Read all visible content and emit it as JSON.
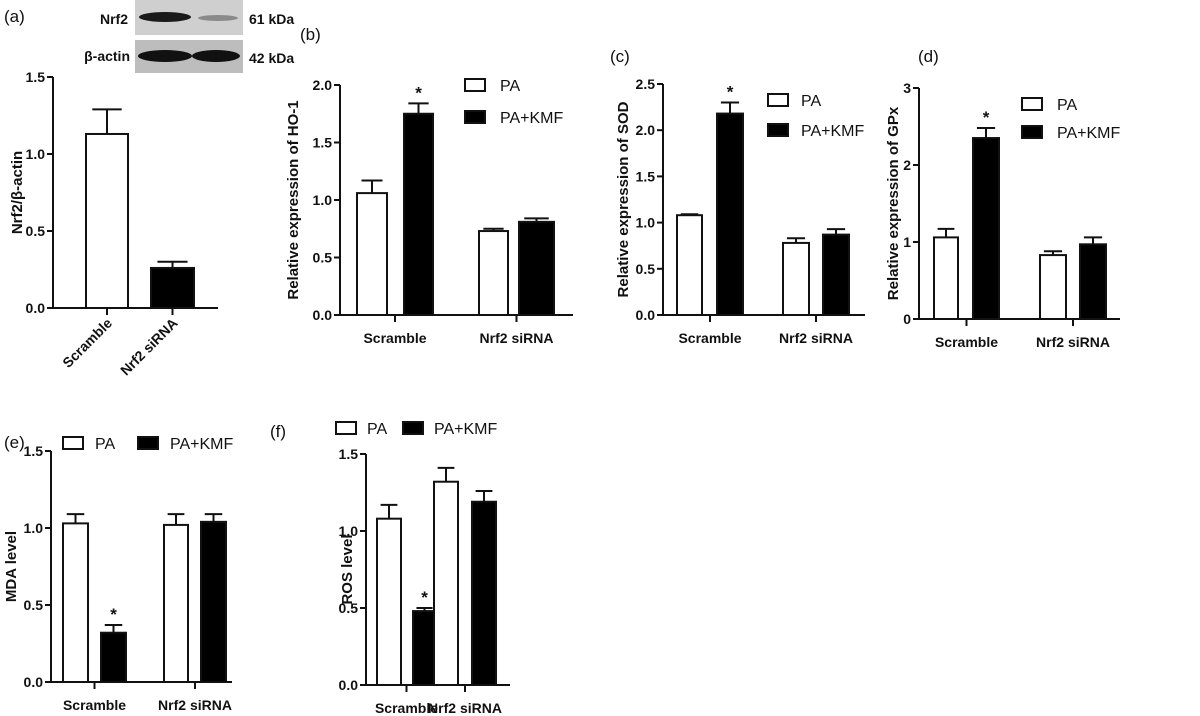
{
  "colors": {
    "PA": "#ffffff",
    "PA+KMF": "#000000",
    "axis": "#111111"
  },
  "western_blot": {
    "rows": [
      {
        "protein": "Nrf2",
        "size": "61 kDa"
      },
      {
        "protein": "β-actin",
        "size": "42 kDa"
      }
    ]
  },
  "chart_data": [
    {
      "panel": "(a)",
      "type": "bar",
      "categories": [
        "Scramble",
        "Nrf2 siRNA"
      ],
      "series": [
        {
          "values": [
            1.13,
            0.26
          ],
          "errors": [
            0.16,
            0.04
          ],
          "fills": [
            "#ffffff",
            "#000000"
          ]
        }
      ],
      "ylabel": "Nrf2/β-actin",
      "ylim": [
        0,
        1.5
      ],
      "yticks": [
        "0.0",
        "0.5",
        "1.0",
        "1.5"
      ],
      "tick_rotation": "45deg",
      "legend": null
    },
    {
      "panel": "(b)",
      "type": "bar",
      "categories": [
        "Scramble",
        "Nrf2 siRNA"
      ],
      "series": [
        {
          "name": "PA",
          "values": [
            1.06,
            0.73
          ],
          "errors": [
            0.11,
            0.02
          ]
        },
        {
          "name": "PA+KMF",
          "values": [
            1.75,
            0.81
          ],
          "errors": [
            0.09,
            0.03
          ]
        }
      ],
      "annotations": [
        {
          "category": "Scramble",
          "series": "PA+KMF",
          "text": "*"
        }
      ],
      "ylabel": "Relative expression of HO-1",
      "ylim": [
        0,
        2.0
      ],
      "yticks": [
        "0.0",
        "0.5",
        "1.0",
        "1.5",
        "2.0"
      ],
      "legend": "top-right"
    },
    {
      "panel": "(c)",
      "type": "bar",
      "categories": [
        "Scramble",
        "Nrf2 siRNA"
      ],
      "series": [
        {
          "name": "PA",
          "values": [
            1.08,
            0.78
          ],
          "errors": [
            0.01,
            0.05
          ]
        },
        {
          "name": "PA+KMF",
          "values": [
            2.18,
            0.87
          ],
          "errors": [
            0.12,
            0.06
          ]
        }
      ],
      "annotations": [
        {
          "category": "Scramble",
          "series": "PA+KMF",
          "text": "*"
        }
      ],
      "ylabel": "Relative expression of SOD",
      "ylim": [
        0,
        2.5
      ],
      "yticks": [
        "0.0",
        "0.5",
        "1.0",
        "1.5",
        "2.0",
        "2.5"
      ],
      "legend": "top-right"
    },
    {
      "panel": "(d)",
      "type": "bar",
      "categories": [
        "Scramble",
        "Nrf2 siRNA"
      ],
      "series": [
        {
          "name": "PA",
          "values": [
            1.06,
            0.83
          ],
          "errors": [
            0.11,
            0.05
          ]
        },
        {
          "name": "PA+KMF",
          "values": [
            2.35,
            0.97
          ],
          "errors": [
            0.13,
            0.09
          ]
        }
      ],
      "annotations": [
        {
          "category": "Scramble",
          "series": "PA+KMF",
          "text": "*"
        }
      ],
      "ylabel": "Relative expression of  GPx",
      "ylim": [
        0,
        3
      ],
      "yticks": [
        "0",
        "1",
        "2",
        "3"
      ],
      "legend": "top-right"
    },
    {
      "panel": "(e)",
      "type": "bar",
      "categories": [
        "Scramble",
        "Nrf2 siRNA"
      ],
      "series": [
        {
          "name": "PA",
          "values": [
            1.03,
            1.02
          ],
          "errors": [
            0.06,
            0.07
          ]
        },
        {
          "name": "PA+KMF",
          "values": [
            0.32,
            1.04
          ],
          "errors": [
            0.05,
            0.05
          ]
        }
      ],
      "annotations": [
        {
          "category": "Scramble",
          "series": "PA+KMF",
          "text": "*"
        }
      ],
      "ylabel": "MDA level",
      "ylim": [
        0,
        1.5
      ],
      "yticks": [
        "0.0",
        "0.5",
        "1.0",
        "1.5"
      ],
      "legend": "top"
    },
    {
      "panel": "(f)",
      "type": "bar",
      "categories": [
        "Scramble",
        "Nrf2 siRNA"
      ],
      "series": [
        {
          "name": "PA",
          "values": [
            1.08,
            1.32
          ],
          "errors": [
            0.09,
            0.09
          ]
        },
        {
          "name": "PA+KMF",
          "values": [
            0.48,
            1.19
          ],
          "errors": [
            0.02,
            0.07
          ]
        }
      ],
      "annotations": [
        {
          "category": "Scramble",
          "series": "PA+KMF",
          "text": "*"
        }
      ],
      "ylabel": "ROS level",
      "ylim": [
        0,
        1.5
      ],
      "yticks": [
        "0.0",
        "0.5",
        "1.0",
        "1.5"
      ],
      "legend": "top"
    }
  ]
}
